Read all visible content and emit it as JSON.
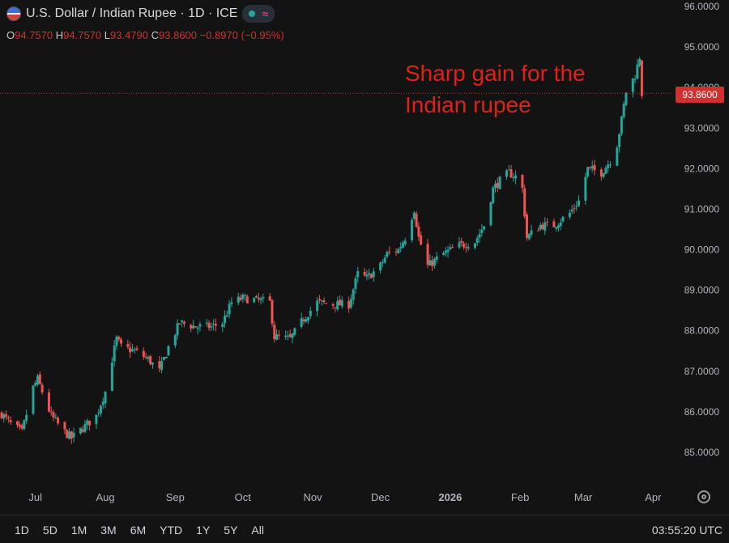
{
  "header": {
    "title": "U.S. Dollar / Indian Rupee · 1D · ICE",
    "ohlc": [
      {
        "k": "O",
        "v": "94.7570"
      },
      {
        "k": "H",
        "v": "94.7570"
      },
      {
        "k": "L",
        "v": "93.4790"
      },
      {
        "k": "C",
        "v": "93.8600"
      }
    ],
    "change": "−0.8970 (−0.95%)"
  },
  "annotation": "Sharp gain for the\nIndian rupee",
  "last_price": "93.8600",
  "periods": [
    "1D",
    "5D",
    "1M",
    "3M",
    "6M",
    "YTD",
    "1Y",
    "5Y",
    "All"
  ],
  "clock": "03:55:20 UTC",
  "colors": {
    "up": "#26a69a",
    "down": "#ef5350",
    "annotation": "#e0201a",
    "last_price": "#d32f2f",
    "background": "#131313"
  },
  "chart_data": {
    "type": "candlestick",
    "title": "U.S. Dollar / Indian Rupee · 1D · ICE",
    "x_tick_labels": [
      "Jul",
      "Aug",
      "Sep",
      "Oct",
      "Nov",
      "Dec",
      "2026",
      "Feb",
      "Mar",
      "Apr"
    ],
    "y_ticks": [
      "85.0000",
      "86.0000",
      "87.0000",
      "88.0000",
      "89.0000",
      "90.0000",
      "91.0000",
      "92.0000",
      "93.0000",
      "94.0000",
      "95.0000",
      "96.0000"
    ],
    "ylim": [
      84.0,
      96.1
    ],
    "grid": false,
    "last_price": 93.86,
    "series": [
      {
        "name": "USD/INR",
        "points": [
          [
            "2025-06-16",
            85.95
          ],
          [
            "2025-06-20",
            85.7
          ],
          [
            "2025-06-25",
            85.5
          ],
          [
            "2025-06-30",
            86.6
          ],
          [
            "2025-07-02",
            86.8
          ],
          [
            "2025-07-08",
            85.9
          ],
          [
            "2025-07-14",
            85.5
          ],
          [
            "2025-07-17",
            85.35
          ],
          [
            "2025-07-22",
            85.6
          ],
          [
            "2025-07-28",
            85.9
          ],
          [
            "2025-08-01",
            86.5
          ],
          [
            "2025-08-04",
            87.3
          ],
          [
            "2025-08-06",
            87.8
          ],
          [
            "2025-08-08",
            87.6
          ],
          [
            "2025-08-14",
            87.5
          ],
          [
            "2025-08-20",
            87.3
          ],
          [
            "2025-08-25",
            87.0
          ],
          [
            "2025-08-29",
            87.6
          ],
          [
            "2025-09-03",
            88.2
          ],
          [
            "2025-09-10",
            88.1
          ],
          [
            "2025-09-17",
            88.1
          ],
          [
            "2025-09-22",
            88.2
          ],
          [
            "2025-09-26",
            88.7
          ],
          [
            "2025-10-01",
            88.8
          ],
          [
            "2025-10-08",
            88.75
          ],
          [
            "2025-10-13",
            88.7
          ],
          [
            "2025-10-15",
            87.85
          ],
          [
            "2025-10-22",
            87.8
          ],
          [
            "2025-10-28",
            88.3
          ],
          [
            "2025-11-03",
            88.7
          ],
          [
            "2025-11-10",
            88.65
          ],
          [
            "2025-11-17",
            88.65
          ],
          [
            "2025-11-21",
            89.4
          ],
          [
            "2025-11-25",
            89.3
          ],
          [
            "2025-12-01",
            89.6
          ],
          [
            "2025-12-04",
            89.9
          ],
          [
            "2025-12-09",
            90.0
          ],
          [
            "2025-12-12",
            90.3
          ],
          [
            "2025-12-16",
            91.0
          ],
          [
            "2025-12-18",
            90.3
          ],
          [
            "2025-12-22",
            89.6
          ],
          [
            "2025-12-29",
            89.9
          ],
          [
            "2026-01-05",
            90.1
          ],
          [
            "2026-01-12",
            90.2
          ],
          [
            "2026-01-16",
            90.6
          ],
          [
            "2026-01-20",
            91.5
          ],
          [
            "2026-01-23",
            91.7
          ],
          [
            "2026-01-27",
            91.9
          ],
          [
            "2026-01-30",
            91.8
          ],
          [
            "2026-02-02",
            91.5
          ],
          [
            "2026-02-04",
            90.3
          ],
          [
            "2026-02-10",
            90.6
          ],
          [
            "2026-02-16",
            90.6
          ],
          [
            "2026-02-23",
            90.9
          ],
          [
            "2026-02-27",
            91.2
          ],
          [
            "2026-03-03",
            92.0
          ],
          [
            "2026-03-09",
            91.9
          ],
          [
            "2026-03-13",
            92.2
          ],
          [
            "2026-03-16",
            92.6
          ],
          [
            "2026-03-18",
            93.2
          ],
          [
            "2026-03-20",
            93.9
          ],
          [
            "2026-03-24",
            94.3
          ],
          [
            "2026-03-26",
            94.76
          ],
          [
            "2026-03-27",
            93.86
          ]
        ]
      }
    ]
  }
}
